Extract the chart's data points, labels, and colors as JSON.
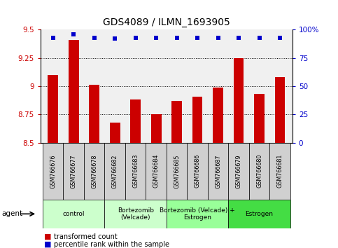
{
  "title": "GDS4089 / ILMN_1693905",
  "samples": [
    "GSM766676",
    "GSM766677",
    "GSM766678",
    "GSM766682",
    "GSM766683",
    "GSM766684",
    "GSM766685",
    "GSM766686",
    "GSM766687",
    "GSM766679",
    "GSM766680",
    "GSM766681"
  ],
  "transformed_counts": [
    9.1,
    9.41,
    9.01,
    8.68,
    8.88,
    8.75,
    8.87,
    8.91,
    8.99,
    9.25,
    8.93,
    9.08
  ],
  "percentile_ranks": [
    93,
    96,
    93,
    92,
    93,
    93,
    93,
    93,
    93,
    93,
    93,
    93
  ],
  "ylim_left": [
    8.5,
    9.5
  ],
  "ylim_right": [
    0,
    100
  ],
  "yticks_left": [
    8.5,
    8.75,
    9.0,
    9.25,
    9.5
  ],
  "ytick_labels_left": [
    "8.5",
    "8.75",
    "9",
    "9.25",
    "9.5"
  ],
  "yticks_right": [
    0,
    25,
    50,
    75,
    100
  ],
  "ytick_labels_right": [
    "0",
    "25",
    "50",
    "75",
    "100%"
  ],
  "bar_color": "#cc0000",
  "dot_color": "#0000cc",
  "groups": [
    {
      "label": "control",
      "start": 0,
      "end": 3,
      "color": "#ccffcc"
    },
    {
      "label": "Bortezomib\n(Velcade)",
      "start": 3,
      "end": 6,
      "color": "#ccffcc"
    },
    {
      "label": "Bortezomib (Velcade) +\nEstrogen",
      "start": 6,
      "end": 9,
      "color": "#99ff99"
    },
    {
      "label": "Estrogen",
      "start": 9,
      "end": 12,
      "color": "#44dd44"
    }
  ],
  "agent_label": "agent",
  "legend_bar_label": "transformed count",
  "legend_dot_label": "percentile rank within the sample",
  "grid_color": "#000000",
  "plot_bg_color": "#f0f0f0",
  "sample_box_color": "#d0d0d0"
}
